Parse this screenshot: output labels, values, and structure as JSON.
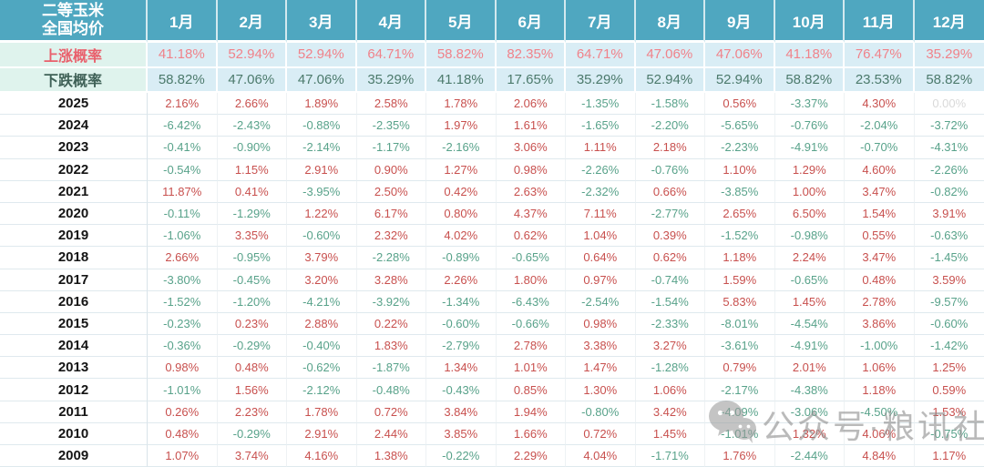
{
  "header": {
    "title_line1": "二等玉米",
    "title_line2": "全国均价"
  },
  "rise_row_label": "上涨概率",
  "fall_row_label": "下跌概率",
  "watermark": {
    "text": "公众号·粮讯社",
    "icon": "wechat-icon"
  },
  "colors": {
    "header_bg": "#4FA7C0",
    "probability_band_bg": "#D9EDF5",
    "probability_label_bg": "#DFF3ED",
    "rise_label": "#E9606C",
    "fall_label": "#3F6157",
    "rise_value": "#F0828A",
    "fall_value": "#4C7A6C",
    "positive_value": "#C8504E",
    "negative_value": "#58A28A",
    "zero_value": "#D9D9D9",
    "watermark_grey": "#8a8a8a"
  },
  "chart_data": {
    "type": "table",
    "title": "二等玉米全国均价",
    "columns": [
      "1月",
      "2月",
      "3月",
      "4月",
      "5月",
      "6月",
      "7月",
      "8月",
      "9月",
      "10月",
      "11月",
      "12月"
    ],
    "rise_probability_pct": [
      41.18,
      52.94,
      52.94,
      64.71,
      58.82,
      82.35,
      64.71,
      47.06,
      47.06,
      41.18,
      76.47,
      35.29
    ],
    "fall_probability_pct": [
      58.82,
      47.06,
      47.06,
      35.29,
      41.18,
      17.65,
      35.29,
      52.94,
      52.94,
      58.82,
      23.53,
      58.82
    ],
    "yearly_changes_pct": [
      {
        "year": "2025",
        "values": [
          2.16,
          2.66,
          1.89,
          2.58,
          1.78,
          2.06,
          -1.35,
          -1.58,
          0.56,
          -3.37,
          4.3,
          0.0
        ]
      },
      {
        "year": "2024",
        "values": [
          -6.42,
          -2.43,
          -0.88,
          -2.35,
          1.97,
          1.61,
          -1.65,
          -2.2,
          -5.65,
          -0.76,
          -2.04,
          -3.72
        ]
      },
      {
        "year": "2023",
        "values": [
          -0.41,
          -0.9,
          -2.14,
          -1.17,
          -2.16,
          3.06,
          1.11,
          2.18,
          -2.23,
          -4.91,
          -0.7,
          -4.31
        ]
      },
      {
        "year": "2022",
        "values": [
          -0.54,
          1.15,
          2.91,
          0.9,
          1.27,
          0.98,
          -2.26,
          -0.76,
          1.1,
          1.29,
          4.6,
          -2.26
        ]
      },
      {
        "year": "2021",
        "values": [
          11.87,
          0.41,
          -3.95,
          2.5,
          0.42,
          2.63,
          -2.32,
          0.66,
          -3.85,
          1.0,
          3.47,
          -0.82
        ]
      },
      {
        "year": "2020",
        "values": [
          -0.11,
          -1.29,
          1.22,
          6.17,
          0.8,
          4.37,
          7.11,
          -2.77,
          2.65,
          6.5,
          1.54,
          3.91
        ]
      },
      {
        "year": "2019",
        "values": [
          -1.06,
          3.35,
          -0.6,
          2.32,
          4.02,
          0.62,
          1.04,
          0.39,
          -1.52,
          -0.98,
          0.55,
          -0.63
        ]
      },
      {
        "year": "2018",
        "values": [
          2.66,
          -0.95,
          3.79,
          -2.28,
          -0.89,
          -0.65,
          0.64,
          0.62,
          1.18,
          2.24,
          3.47,
          -1.45
        ]
      },
      {
        "year": "2017",
        "values": [
          -3.8,
          -0.45,
          3.2,
          3.28,
          2.26,
          1.8,
          0.97,
          -0.74,
          1.59,
          -0.65,
          0.48,
          3.59
        ]
      },
      {
        "year": "2016",
        "values": [
          -1.52,
          -1.2,
          -4.21,
          -3.92,
          -1.34,
          -6.43,
          -2.54,
          -1.54,
          5.83,
          1.45,
          2.78,
          -9.57
        ]
      },
      {
        "year": "2015",
        "values": [
          -0.23,
          0.23,
          2.88,
          0.22,
          -0.6,
          -0.66,
          0.98,
          -2.33,
          -8.01,
          -4.54,
          3.86,
          -0.6
        ]
      },
      {
        "year": "2014",
        "values": [
          -0.36,
          -0.29,
          -0.4,
          1.83,
          -2.79,
          2.78,
          3.38,
          3.27,
          -3.61,
          -4.91,
          -1.0,
          -1.42
        ]
      },
      {
        "year": "2013",
        "values": [
          0.98,
          0.48,
          -0.62,
          -1.87,
          1.34,
          1.01,
          1.47,
          -1.28,
          0.79,
          2.01,
          1.06,
          1.25
        ]
      },
      {
        "year": "2012",
        "values": [
          -1.01,
          1.56,
          -2.12,
          -0.48,
          -0.43,
          0.85,
          1.3,
          1.06,
          -2.17,
          -4.38,
          1.18,
          0.59
        ]
      },
      {
        "year": "2011",
        "values": [
          0.26,
          2.23,
          1.78,
          0.72,
          3.84,
          1.94,
          -0.8,
          3.42,
          -4.09,
          -3.06,
          -4.5,
          1.53
        ]
      },
      {
        "year": "2010",
        "values": [
          0.48,
          -0.29,
          2.91,
          2.44,
          3.85,
          1.66,
          0.72,
          1.45,
          -1.01,
          1.32,
          4.06,
          -0.75
        ]
      },
      {
        "year": "2009",
        "values": [
          1.07,
          3.74,
          4.16,
          1.38,
          -0.22,
          2.29,
          4.04,
          -1.71,
          1.76,
          -2.44,
          4.84,
          1.17
        ]
      }
    ]
  }
}
